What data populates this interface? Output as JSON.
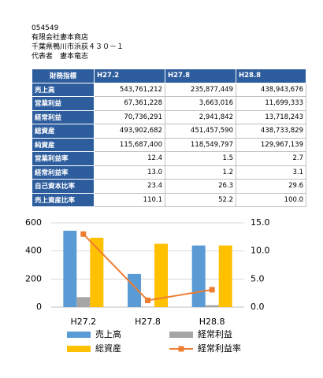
{
  "header": {
    "lines": [
      "054549",
      "有限会社妻本商店",
      "千葉県鴨川市浜荻４３０－１",
      "代表者　妻本竜志"
    ]
  },
  "table": {
    "columns": [
      "財務指標",
      "H27.2",
      "H27.8",
      "H28.8"
    ],
    "rows": [
      [
        "売上高",
        "543,761,212",
        "235,877,449",
        "438,943,676"
      ],
      [
        "営業利益",
        "67,361,228",
        "3,663,016",
        "11,699,333"
      ],
      [
        "経常利益",
        "70,736,291",
        "2,941,842",
        "13,718,243"
      ],
      [
        "総資産",
        "493,902,682",
        "451,457,590",
        "438,733,829"
      ],
      [
        "純資産",
        "115,687,400",
        "118,549,797",
        "129,967,139"
      ],
      [
        "営業利益率",
        "12.4",
        "1.5",
        "2.7"
      ],
      [
        "経常利益率",
        "13.0",
        "1.2",
        "3.1"
      ],
      [
        "自己資本比率",
        "23.4",
        "26.3",
        "29.6"
      ],
      [
        "売上資産比率",
        "110.1",
        "52.2",
        "100.0"
      ]
    ]
  },
  "chart_data": {
    "type": "bar",
    "categories": [
      "H27.2",
      "H27.8",
      "H28.8"
    ],
    "series": [
      {
        "name": "売上高",
        "color": "#5b9bd5",
        "values": [
          544,
          236,
          439
        ]
      },
      {
        "name": "経常利益",
        "color": "#a5a5a5",
        "values": [
          71,
          3,
          14
        ]
      },
      {
        "name": "総資産",
        "color": "#ffc000",
        "values": [
          494,
          451,
          439
        ]
      },
      {
        "name": "経常利益率",
        "color": "#ed7d31",
        "type": "line",
        "axis": "y2",
        "values": [
          13.0,
          1.2,
          3.1
        ]
      }
    ],
    "ylim": [
      0,
      600
    ],
    "yticks": [
      0,
      200,
      400,
      600
    ],
    "y2lim": [
      0,
      15
    ],
    "y2ticks": [
      {
        "value": 0,
        "label": "0.0"
      },
      {
        "value": 5,
        "label": "5.0"
      },
      {
        "value": 10,
        "label": "10.0"
      },
      {
        "value": 15,
        "label": "15.0"
      }
    ],
    "grid": true
  }
}
